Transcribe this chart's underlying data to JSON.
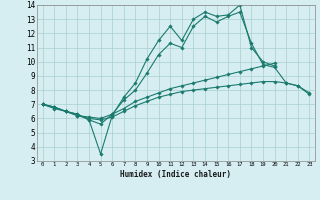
{
  "xlabel": "Humidex (Indice chaleur)",
  "bg_color": "#d6eef2",
  "line_color": "#1a7a6e",
  "grid_color": "#aacfcf",
  "xlim": [
    -0.5,
    23.5
  ],
  "ylim": [
    3,
    14
  ],
  "xticks": [
    0,
    1,
    2,
    3,
    4,
    5,
    6,
    7,
    8,
    9,
    10,
    11,
    12,
    13,
    14,
    15,
    16,
    17,
    18,
    19,
    20,
    21,
    22,
    23
  ],
  "yticks": [
    3,
    4,
    5,
    6,
    7,
    8,
    9,
    10,
    11,
    12,
    13,
    14
  ],
  "series": [
    [
      7.0,
      6.7,
      6.5,
      6.3,
      5.9,
      5.6,
      6.3,
      7.3,
      8.0,
      9.2,
      10.5,
      11.3,
      11.0,
      12.5,
      13.2,
      12.8,
      13.2,
      13.5,
      11.3,
      9.8,
      9.6,
      8.5,
      8.3,
      7.7
    ],
    [
      7.0,
      6.8,
      6.5,
      6.3,
      5.9,
      3.5,
      6.2,
      7.5,
      8.5,
      10.2,
      11.5,
      12.5,
      11.5,
      13.0,
      13.5,
      13.2,
      13.3,
      14.0,
      11.0,
      10.0,
      9.7,
      null,
      null,
      null
    ],
    [
      7.0,
      6.8,
      6.5,
      6.2,
      6.1,
      6.0,
      6.3,
      6.7,
      7.2,
      7.5,
      7.8,
      8.1,
      8.3,
      8.5,
      8.7,
      8.9,
      9.1,
      9.3,
      9.5,
      9.7,
      9.9,
      null,
      null,
      null
    ],
    [
      7.0,
      6.8,
      6.5,
      6.2,
      6.0,
      5.9,
      6.1,
      6.5,
      6.9,
      7.2,
      7.5,
      7.7,
      7.9,
      8.0,
      8.1,
      8.2,
      8.3,
      8.4,
      8.5,
      8.6,
      8.6,
      8.5,
      8.3,
      7.8
    ]
  ]
}
